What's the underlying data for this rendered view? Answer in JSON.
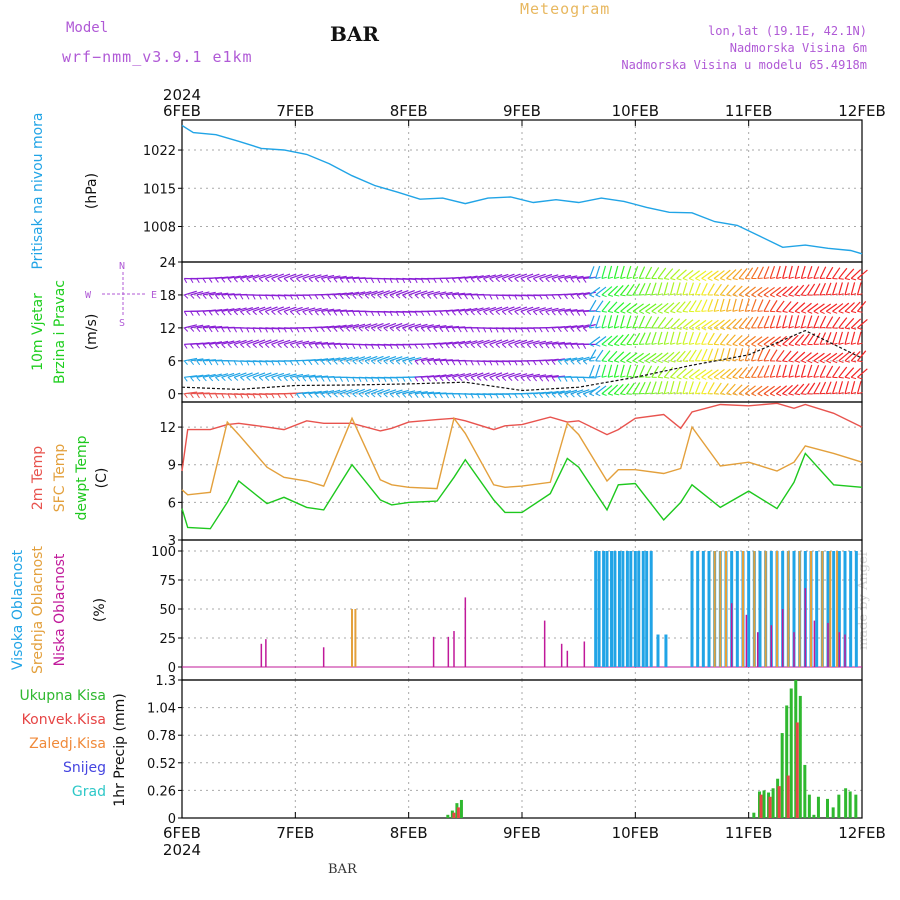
{
  "header": {
    "model_label": "Model",
    "model_run": "wrf−nmm_v3.9.1  e1km",
    "title": "BAR",
    "product": "Meteogram",
    "lonlat": "lon,lat (19.1E, 42.1N)",
    "altitude": "Nadmorska Visina 6m",
    "model_altitude": "Nadmorska Visina u modelu 65.4918m"
  },
  "footer": {
    "station": "BAR",
    "credit": "made by Angel"
  },
  "colors": {
    "pressure": "#21a4e6",
    "wind_title": "#1fcf1f",
    "temp2m": "#e8534e",
    "sfc_temp": "#e3a03c",
    "dewpoint": "#1ec81e",
    "cloud_high": "#21a4e6",
    "cloud_mid": "#e3a03c",
    "cloud_low": "#c0199a",
    "precip_total": "#2fb82f",
    "precip_conv": "#e64545",
    "precip_frz": "#f08a3a",
    "snow": "#4545e0",
    "grad": "#2ec8c8",
    "wind_purple": "#8a1fd6"
  },
  "chart_data": [
    {
      "type": "line",
      "panel": "pressure",
      "ylabel_lines": [
        "Pritisak na nivou mora"
      ],
      "unit": "(hPa)",
      "year": "2024",
      "x_ticks": [
        "6FEB",
        "7FEB",
        "8FEB",
        "9FEB",
        "10FEB",
        "11FEB",
        "12FEB"
      ],
      "yticks": [
        "1022",
        "1015",
        "1008"
      ],
      "ylim": [
        1001.5,
        1027.5
      ],
      "x": [
        0,
        0.1,
        0.3,
        0.5,
        0.7,
        0.9,
        1.1,
        1.3,
        1.5,
        1.7,
        1.9,
        2.1,
        2.3,
        2.5,
        2.7,
        2.9,
        3.1,
        3.3,
        3.5,
        3.7,
        3.9,
        4.1,
        4.3,
        4.5,
        4.7,
        4.9,
        5.1,
        5.3,
        5.5,
        5.7,
        5.9,
        6.0
      ],
      "series": [
        {
          "values": [
            1026.5,
            1025.2,
            1024.8,
            1023.6,
            1022.3,
            1022.0,
            1021.2,
            1019.5,
            1017.3,
            1015.5,
            1014.3,
            1013.0,
            1013.2,
            1012.2,
            1013.2,
            1013.4,
            1012.4,
            1012.9,
            1012.4,
            1013.2,
            1012.6,
            1011.5,
            1010.6,
            1010.5,
            1008.9,
            1008.2,
            1006.2,
            1004.2,
            1004.6,
            1004.0,
            1003.6,
            1003.0
          ]
        }
      ]
    },
    {
      "type": "scatter",
      "panel": "wind",
      "ylabel_lines": [
        "10m Vjetar",
        "Brzina i Pravac"
      ],
      "unit": "(m/s)",
      "compass": [
        "N",
        "W",
        "E",
        "S"
      ],
      "yticks": [
        "24",
        "18",
        "12",
        "6",
        "0"
      ],
      "ylim": [
        -1.5,
        24
      ],
      "x": [
        0,
        0.5,
        1.0,
        1.5,
        2.0,
        2.5,
        3.0,
        3.5,
        4.0,
        4.5,
        5.0,
        5.5,
        6.0
      ],
      "series": [
        {
          "values": [
            1.2,
            0.8,
            1.5,
            1.6,
            1.8,
            2.1,
            0.6,
            1.2,
            3.0,
            5.2,
            7.1,
            11.5,
            6.5
          ]
        }
      ]
    },
    {
      "type": "line",
      "panel": "temperature",
      "ylabel_lines": [
        "2m Temp",
        "SFC Temp",
        "dewpt Temp"
      ],
      "unit": "(C)",
      "yticks": [
        "12",
        "9",
        "6",
        "3"
      ],
      "ylim": [
        3,
        14
      ],
      "x": [
        0,
        0.05,
        0.25,
        0.4,
        0.5,
        0.75,
        0.9,
        1.1,
        1.25,
        1.5,
        1.75,
        1.85,
        2.0,
        2.25,
        2.4,
        2.5,
        2.75,
        2.85,
        3.0,
        3.25,
        3.4,
        3.5,
        3.75,
        3.85,
        4.0,
        4.25,
        4.4,
        4.5,
        4.75,
        5.0,
        5.25,
        5.4,
        5.5,
        5.75,
        6.0
      ],
      "series": [
        {
          "name": "2m Temp",
          "values": [
            8.5,
            11.8,
            11.8,
            12.2,
            12.3,
            12.0,
            11.8,
            12.5,
            12.3,
            12.3,
            11.7,
            11.9,
            12.4,
            12.6,
            12.7,
            12.5,
            11.8,
            12.1,
            12.2,
            12.8,
            12.4,
            12.5,
            11.4,
            11.8,
            12.7,
            13.0,
            11.9,
            13.2,
            13.8,
            13.7,
            13.9,
            13.5,
            13.8,
            13.1,
            12.0
          ]
        },
        {
          "name": "SFC Temp",
          "values": [
            7.0,
            6.6,
            6.8,
            12.4,
            11.4,
            8.8,
            8.0,
            7.7,
            7.3,
            12.7,
            7.8,
            7.4,
            7.2,
            7.1,
            12.7,
            11.5,
            7.4,
            7.2,
            7.3,
            7.6,
            12.3,
            11.4,
            7.7,
            8.6,
            8.6,
            8.3,
            8.7,
            12.0,
            8.9,
            9.2,
            8.5,
            9.2,
            10.5,
            9.9,
            9.2
          ]
        },
        {
          "name": "dewpt Temp",
          "values": [
            5.5,
            4.0,
            3.9,
            6.0,
            7.7,
            5.9,
            6.4,
            5.6,
            5.4,
            9.0,
            6.2,
            5.8,
            6.0,
            6.1,
            8.0,
            9.4,
            6.2,
            5.2,
            5.2,
            6.7,
            9.5,
            8.8,
            5.4,
            7.4,
            7.5,
            4.6,
            6.0,
            7.4,
            5.6,
            6.9,
            5.5,
            7.6,
            9.9,
            7.4,
            7.2
          ]
        }
      ]
    },
    {
      "type": "bar",
      "panel": "clouds",
      "ylabel_lines": [
        "Visoka Oblacnost",
        "Srednja Oblacnost",
        "Niska Oblacnost"
      ],
      "unit": "(%)",
      "yticks": [
        "100",
        "75",
        "50",
        "25",
        "0"
      ],
      "ylim": [
        0,
        100
      ],
      "series": [
        {
          "name": "Visoka Oblacnost",
          "x": [
            3.65,
            3.68,
            3.72,
            3.75,
            3.79,
            3.82,
            3.86,
            3.89,
            3.93,
            3.96,
            4.0,
            4.03,
            4.07,
            4.1,
            4.14,
            4.2,
            4.27,
            4.5,
            4.55,
            4.6,
            4.65,
            4.7,
            4.75,
            4.8,
            4.85,
            4.9,
            4.95,
            5.0,
            5.05,
            5.1,
            5.15,
            5.2,
            5.25,
            5.3,
            5.35,
            5.4,
            5.45,
            5.5,
            5.55,
            5.6,
            5.65,
            5.7,
            5.75,
            5.8,
            5.85,
            5.9,
            5.95
          ],
          "values": [
            100,
            100,
            100,
            100,
            100,
            100,
            100,
            100,
            100,
            100,
            100,
            100,
            100,
            100,
            100,
            28,
            28,
            100,
            100,
            100,
            100,
            100,
            100,
            100,
            100,
            100,
            100,
            100,
            100,
            100,
            100,
            100,
            100,
            100,
            100,
            100,
            100,
            100,
            100,
            100,
            100,
            100,
            100,
            100,
            100,
            100,
            100
          ]
        },
        {
          "name": "Srednja Oblacnost",
          "x": [
            1.5,
            1.53,
            4.7,
            4.75,
            4.8,
            4.95,
            5.05,
            5.15,
            5.25,
            5.35,
            5.45,
            5.55,
            5.65,
            5.72,
            5.78
          ],
          "values": [
            50,
            50,
            100,
            100,
            100,
            100,
            100,
            100,
            100,
            100,
            100,
            100,
            100,
            100,
            100
          ]
        },
        {
          "name": "Niska Oblacnost",
          "x": [
            0.7,
            0.74,
            1.25,
            2.22,
            2.35,
            2.4,
            2.5,
            3.2,
            3.35,
            3.4,
            3.55,
            4.85,
            4.98,
            5.08,
            5.2,
            5.3,
            5.4,
            5.5,
            5.58,
            5.7,
            5.8,
            5.85
          ],
          "values": [
            20,
            24,
            17,
            26,
            26,
            31,
            60,
            40,
            20,
            14,
            22,
            55,
            45,
            30,
            36,
            50,
            30,
            68,
            40,
            38,
            30,
            28
          ]
        }
      ]
    },
    {
      "type": "bar",
      "panel": "precipitation",
      "ylabel_lines": [
        "Ukupna Kisa",
        "Konvek.Kisa",
        "Zaledj.Kisa",
        "Snijeg",
        "Grad"
      ],
      "unit": "1hr Precip (mm)",
      "yticks": [
        "1.3",
        "1.04",
        "0.78",
        "0.52",
        "0.26",
        "0"
      ],
      "ylim": [
        0,
        1.3
      ],
      "x_ticks_bottom": [
        "6FEB",
        "7FEB",
        "8FEB",
        "9FEB",
        "10FEB",
        "11FEB",
        "12FEB"
      ],
      "year_bottom": "2024",
      "series": [
        {
          "name": "Ukupna Kisa",
          "x": [
            2.35,
            2.39,
            2.43,
            2.47,
            5.05,
            5.1,
            5.14,
            5.18,
            5.22,
            5.26,
            5.3,
            5.34,
            5.38,
            5.42,
            5.46,
            5.5,
            5.54,
            5.58,
            5.62,
            5.7,
            5.75,
            5.8,
            5.86,
            5.9,
            5.95
          ],
          "values": [
            0.03,
            0.07,
            0.14,
            0.17,
            0.05,
            0.25,
            0.26,
            0.24,
            0.28,
            0.37,
            0.8,
            1.06,
            1.22,
            1.3,
            1.15,
            0.5,
            0.22,
            0.03,
            0.2,
            0.18,
            0.1,
            0.22,
            0.28,
            0.25,
            0.22
          ]
        },
        {
          "name": "Konvek.Kisa",
          "x": [
            2.39,
            2.43,
            5.1,
            5.18,
            5.26,
            5.34,
            5.42
          ],
          "values": [
            0.05,
            0.1,
            0.22,
            0.2,
            0.3,
            0.4,
            0.9
          ]
        }
      ]
    }
  ]
}
